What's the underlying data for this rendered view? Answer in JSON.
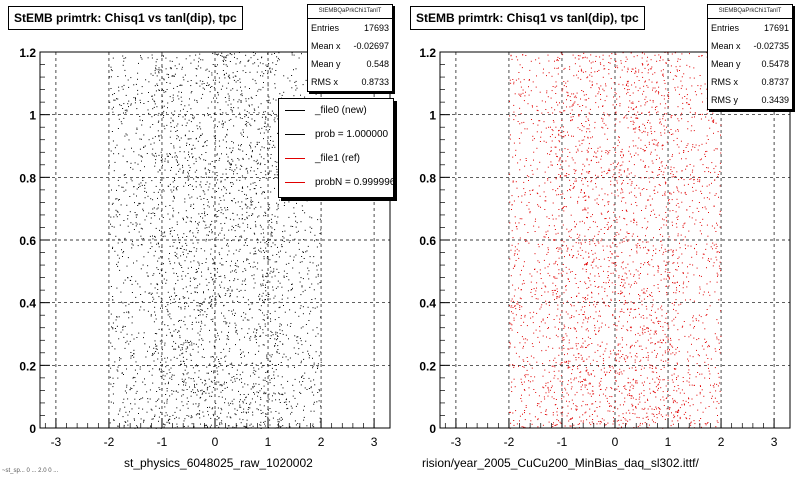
{
  "chart_data": [
    {
      "type": "scatter",
      "title": "StEMB primtrk: Chisq1 vs tanl(dip), tpc",
      "xlabel": "st_physics_6048025_raw_1020002",
      "ylabel": "",
      "xlim": [
        -3.3,
        3.3
      ],
      "ylim": [
        0,
        1.2
      ],
      "xticks": [
        "-3",
        "-2",
        "-1",
        "0",
        "1",
        "2",
        "3"
      ],
      "yticks": [
        "0",
        "0.2",
        "0.4",
        "0.6",
        "0.8",
        "1",
        "1.2"
      ],
      "grid": true,
      "marker_color": "#000000",
      "series": [
        {
          "name": "_file0 (new)",
          "x_range": [
            -2.0,
            2.0
          ],
          "y_range": [
            0,
            1.2
          ],
          "point_count_drawn": 3200
        }
      ],
      "stats": {
        "name": "StEMBQaPrkChi1TanlT",
        "entries_label": "Entries",
        "entries": "17693",
        "mean_x_label": "Mean x",
        "mean_x": "-0.02697",
        "mean_y_label": "Mean y",
        "mean_y": "0.548",
        "rms_x_label": "RMS x",
        "rms_x": "0.8733"
      },
      "legend": {
        "position": "top-right",
        "entries": [
          {
            "label": "_file0 (new)",
            "color": "#000000"
          },
          {
            "label": "prob = 1.000000",
            "color": "#000000"
          },
          {
            "label": "_file1 (ref)",
            "color": "#e00000"
          },
          {
            "label": "probN = 0.999996",
            "color": "#e00000"
          }
        ]
      }
    },
    {
      "type": "scatter",
      "title": "StEMB primtrk: Chisq1 vs tanl(dip), tpc",
      "xlabel": "rision/year_2005_CuCu200_MinBias_daq_sl302.ittf/",
      "ylabel": "",
      "xlim": [
        -3.3,
        3.3
      ],
      "ylim": [
        0,
        1.2
      ],
      "xticks": [
        "-3",
        "-2",
        "-1",
        "0",
        "1",
        "2",
        "3"
      ],
      "yticks": [
        "0",
        "0.2",
        "0.4",
        "0.6",
        "0.8",
        "1",
        "1.2"
      ],
      "grid": true,
      "marker_color": "#e00000",
      "series": [
        {
          "name": "_file1 (ref)",
          "x_range": [
            -2.0,
            2.0
          ],
          "y_range": [
            0,
            1.2
          ],
          "point_count_drawn": 3200
        }
      ],
      "stats": {
        "name": "StEMBQaPrkChi1TanlT",
        "entries_label": "Entries",
        "entries": "17691",
        "mean_x_label": "Mean x",
        "mean_x": "-0.02735",
        "mean_y_label": "Mean y",
        "mean_y": "0.5478",
        "rms_x_label": "RMS x",
        "rms_x": "0.8737",
        "rms_y_label": "RMS y",
        "rms_y": "0.3439"
      }
    }
  ],
  "footer": {
    "text": "~st_sp... 0 ... 2.0 0 ..."
  }
}
